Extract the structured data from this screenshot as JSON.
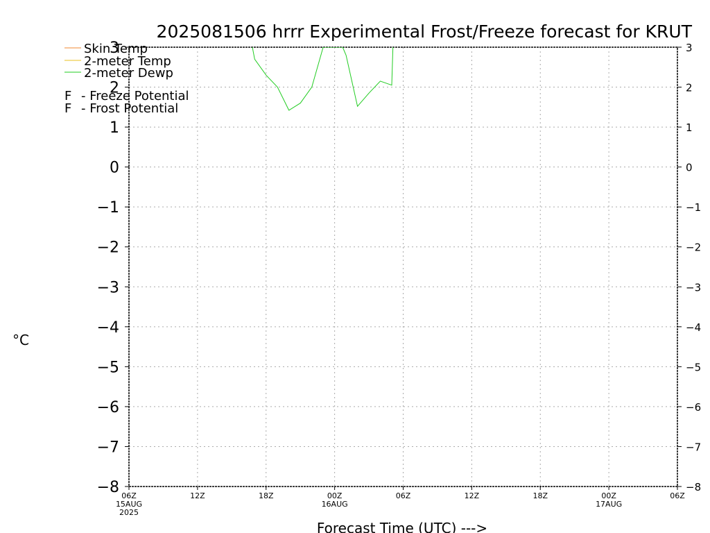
{
  "title": "2025081506 hrrr Experimental Frost/Freeze forecast for KRUT",
  "xlabel": "Forecast Time (UTC) --->",
  "ylabel_unit": "°C",
  "colors": {
    "skin_temp": "#f08a30",
    "t2m": "#e8c020",
    "dewp": "#22cc22",
    "freeze": "#cc2288",
    "frost": "#3344ee",
    "grid": "#aaaaaa"
  },
  "legend": {
    "series": [
      "Skin Temp",
      "2-meter Temp",
      "2-meter Dewp"
    ],
    "markers": [
      {
        "letter": "F",
        "text": "- Freeze Potential"
      },
      {
        "letter": "F",
        "text": "- Frost Potential"
      }
    ]
  },
  "chart_data": {
    "type": "line",
    "title": "2025081506 hrrr Experimental Frost/Freeze forecast for KRUT",
    "xlabel": "Forecast Time (UTC) --->",
    "ylabel": "°C",
    "ylim": [
      -8,
      3
    ],
    "yticks": [
      3,
      2,
      1,
      0,
      -1,
      -2,
      -3,
      -4,
      -5,
      -6,
      -7,
      -8
    ],
    "xlim_hours": [
      0,
      48
    ],
    "xticks": [
      {
        "h": 0,
        "lines": [
          "06Z",
          "15AUG",
          "2025"
        ]
      },
      {
        "h": 6,
        "lines": [
          "12Z"
        ]
      },
      {
        "h": 12,
        "lines": [
          "18Z"
        ]
      },
      {
        "h": 18,
        "lines": [
          "00Z",
          "16AUG"
        ]
      },
      {
        "h": 24,
        "lines": [
          "06Z"
        ]
      },
      {
        "h": 30,
        "lines": [
          "12Z"
        ]
      },
      {
        "h": 36,
        "lines": [
          "18Z"
        ]
      },
      {
        "h": 42,
        "lines": [
          "00Z",
          "17AUG"
        ]
      },
      {
        "h": 48,
        "lines": [
          "06Z"
        ]
      }
    ],
    "grid": true,
    "series": [
      {
        "name": "Skin Temp",
        "color": "#f08a30",
        "points": []
      },
      {
        "name": "2-meter Temp",
        "color": "#e8c020",
        "points": []
      },
      {
        "name": "2-meter Dewp",
        "color": "#22cc22",
        "points": [
          [
            10.8,
            3.0
          ],
          [
            11.0,
            2.7
          ],
          [
            12.0,
            2.3
          ],
          [
            13.0,
            2.0
          ],
          [
            14.0,
            1.42
          ],
          [
            15.0,
            1.6
          ],
          [
            16.0,
            2.0
          ],
          [
            17.0,
            3.0
          ],
          [
            18.7,
            3.0
          ],
          [
            19.0,
            2.8
          ],
          [
            20.0,
            1.52
          ],
          [
            21.0,
            1.85
          ],
          [
            22.0,
            2.15
          ],
          [
            23.0,
            2.05
          ],
          [
            23.1,
            3.0
          ]
        ]
      }
    ]
  }
}
